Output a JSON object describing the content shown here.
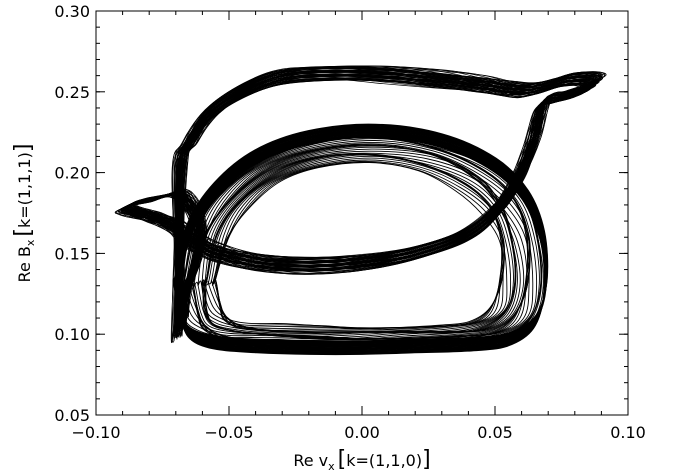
{
  "chart_data": {
    "type": "line",
    "xlabel": {
      "prefix": "Re v",
      "sub": "x",
      "bracket_open": "[",
      "k": "k=(1,1,0)",
      "bracket_close": "]"
    },
    "ylabel": {
      "prefix": "Re B",
      "sub": "x",
      "bracket_open": "[",
      "k": "k=(1,1,1)",
      "bracket_close": "]"
    },
    "xlim": [
      -0.1,
      0.1
    ],
    "ylim": [
      0.05,
      0.3
    ],
    "xticks": [
      {
        "value": -0.1,
        "label": "−0.10"
      },
      {
        "value": -0.05,
        "label": "−0.05"
      },
      {
        "value": 0.0,
        "label": "0.00"
      },
      {
        "value": 0.05,
        "label": "0.05"
      },
      {
        "value": 0.1,
        "label": "0.10"
      }
    ],
    "yticks": [
      {
        "value": 0.05,
        "label": "0.05"
      },
      {
        "value": 0.1,
        "label": "0.10"
      },
      {
        "value": 0.15,
        "label": "0.15"
      },
      {
        "value": 0.2,
        "label": "0.20"
      },
      {
        "value": 0.25,
        "label": "0.25"
      },
      {
        "value": 0.3,
        "label": "0.30"
      }
    ],
    "grid": false,
    "series": [
      {
        "line_color": "#000000",
        "x": [
          -0.07,
          -0.068,
          -0.064,
          -0.055,
          -0.04,
          -0.02,
          0.0,
          0.02,
          0.04,
          0.055,
          0.065,
          0.069,
          0.068,
          0.062,
          0.05,
          0.03,
          0.005,
          -0.02,
          -0.04,
          -0.055,
          -0.065,
          -0.07
        ],
        "y": [
          0.13,
          0.11,
          0.1,
          0.095,
          0.093,
          0.092,
          0.092,
          0.093,
          0.094,
          0.097,
          0.108,
          0.13,
          0.16,
          0.185,
          0.205,
          0.22,
          0.226,
          0.222,
          0.21,
          0.19,
          0.165,
          0.13
        ]
      },
      {
        "line_color": "#000000",
        "x": [
          -0.07,
          -0.066,
          -0.058,
          -0.045,
          -0.03,
          -0.01,
          0.01,
          0.03,
          0.045,
          0.056,
          0.064,
          0.072,
          0.08,
          0.088,
          0.09,
          0.084,
          0.076,
          0.07,
          0.066,
          0.06,
          0.052,
          0.04,
          0.02,
          0.0,
          -0.02,
          -0.04,
          -0.055,
          -0.066,
          -0.072,
          -0.08,
          -0.088,
          -0.091,
          -0.086,
          -0.078,
          -0.071,
          -0.066,
          -0.062,
          -0.064,
          -0.068,
          -0.07
        ],
        "y": [
          0.2,
          0.22,
          0.24,
          0.255,
          0.264,
          0.266,
          0.265,
          0.262,
          0.259,
          0.256,
          0.255,
          0.258,
          0.262,
          0.262,
          0.259,
          0.254,
          0.25,
          0.246,
          0.22,
          0.195,
          0.175,
          0.158,
          0.146,
          0.14,
          0.138,
          0.14,
          0.146,
          0.155,
          0.164,
          0.17,
          0.174,
          0.177,
          0.18,
          0.183,
          0.186,
          0.178,
          0.16,
          0.14,
          0.118,
          0.1
        ]
      }
    ]
  }
}
